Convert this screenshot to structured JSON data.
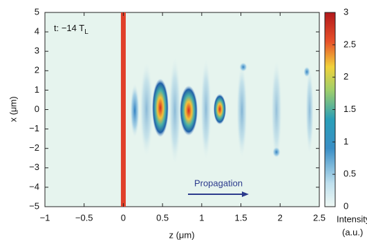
{
  "chart_data": {
    "type": "heatmap",
    "annotation": "t: −14 T",
    "annotation_subscript": "L",
    "x_label": "z (μm)",
    "y_label": "x (μm)",
    "xlim": [
      -1,
      2.5
    ],
    "xticks": [
      {
        "value": -1,
        "label": "−1"
      },
      {
        "value": -0.5,
        "label": "−0.5"
      },
      0,
      0.5,
      1,
      1.5,
      2,
      2.5
    ],
    "ylim": [
      -5,
      5
    ],
    "yticks": [
      {
        "value": -5,
        "label": "−5"
      },
      {
        "value": -4,
        "label": "−4"
      },
      {
        "value": -3,
        "label": "−3"
      },
      {
        "value": -2,
        "label": "−2"
      },
      {
        "value": -1,
        "label": "−1"
      },
      0,
      1,
      2,
      3,
      4,
      5
    ],
    "vline": {
      "x": 0,
      "color": "#e0402a"
    },
    "colorbar": {
      "label": "Intensity",
      "unit": "(a.u.)",
      "lim": [
        0,
        3
      ],
      "ticks": [
        0,
        0.5,
        1,
        1.5,
        2,
        2.5,
        3
      ]
    },
    "arrow_label": "Propagation"
  }
}
